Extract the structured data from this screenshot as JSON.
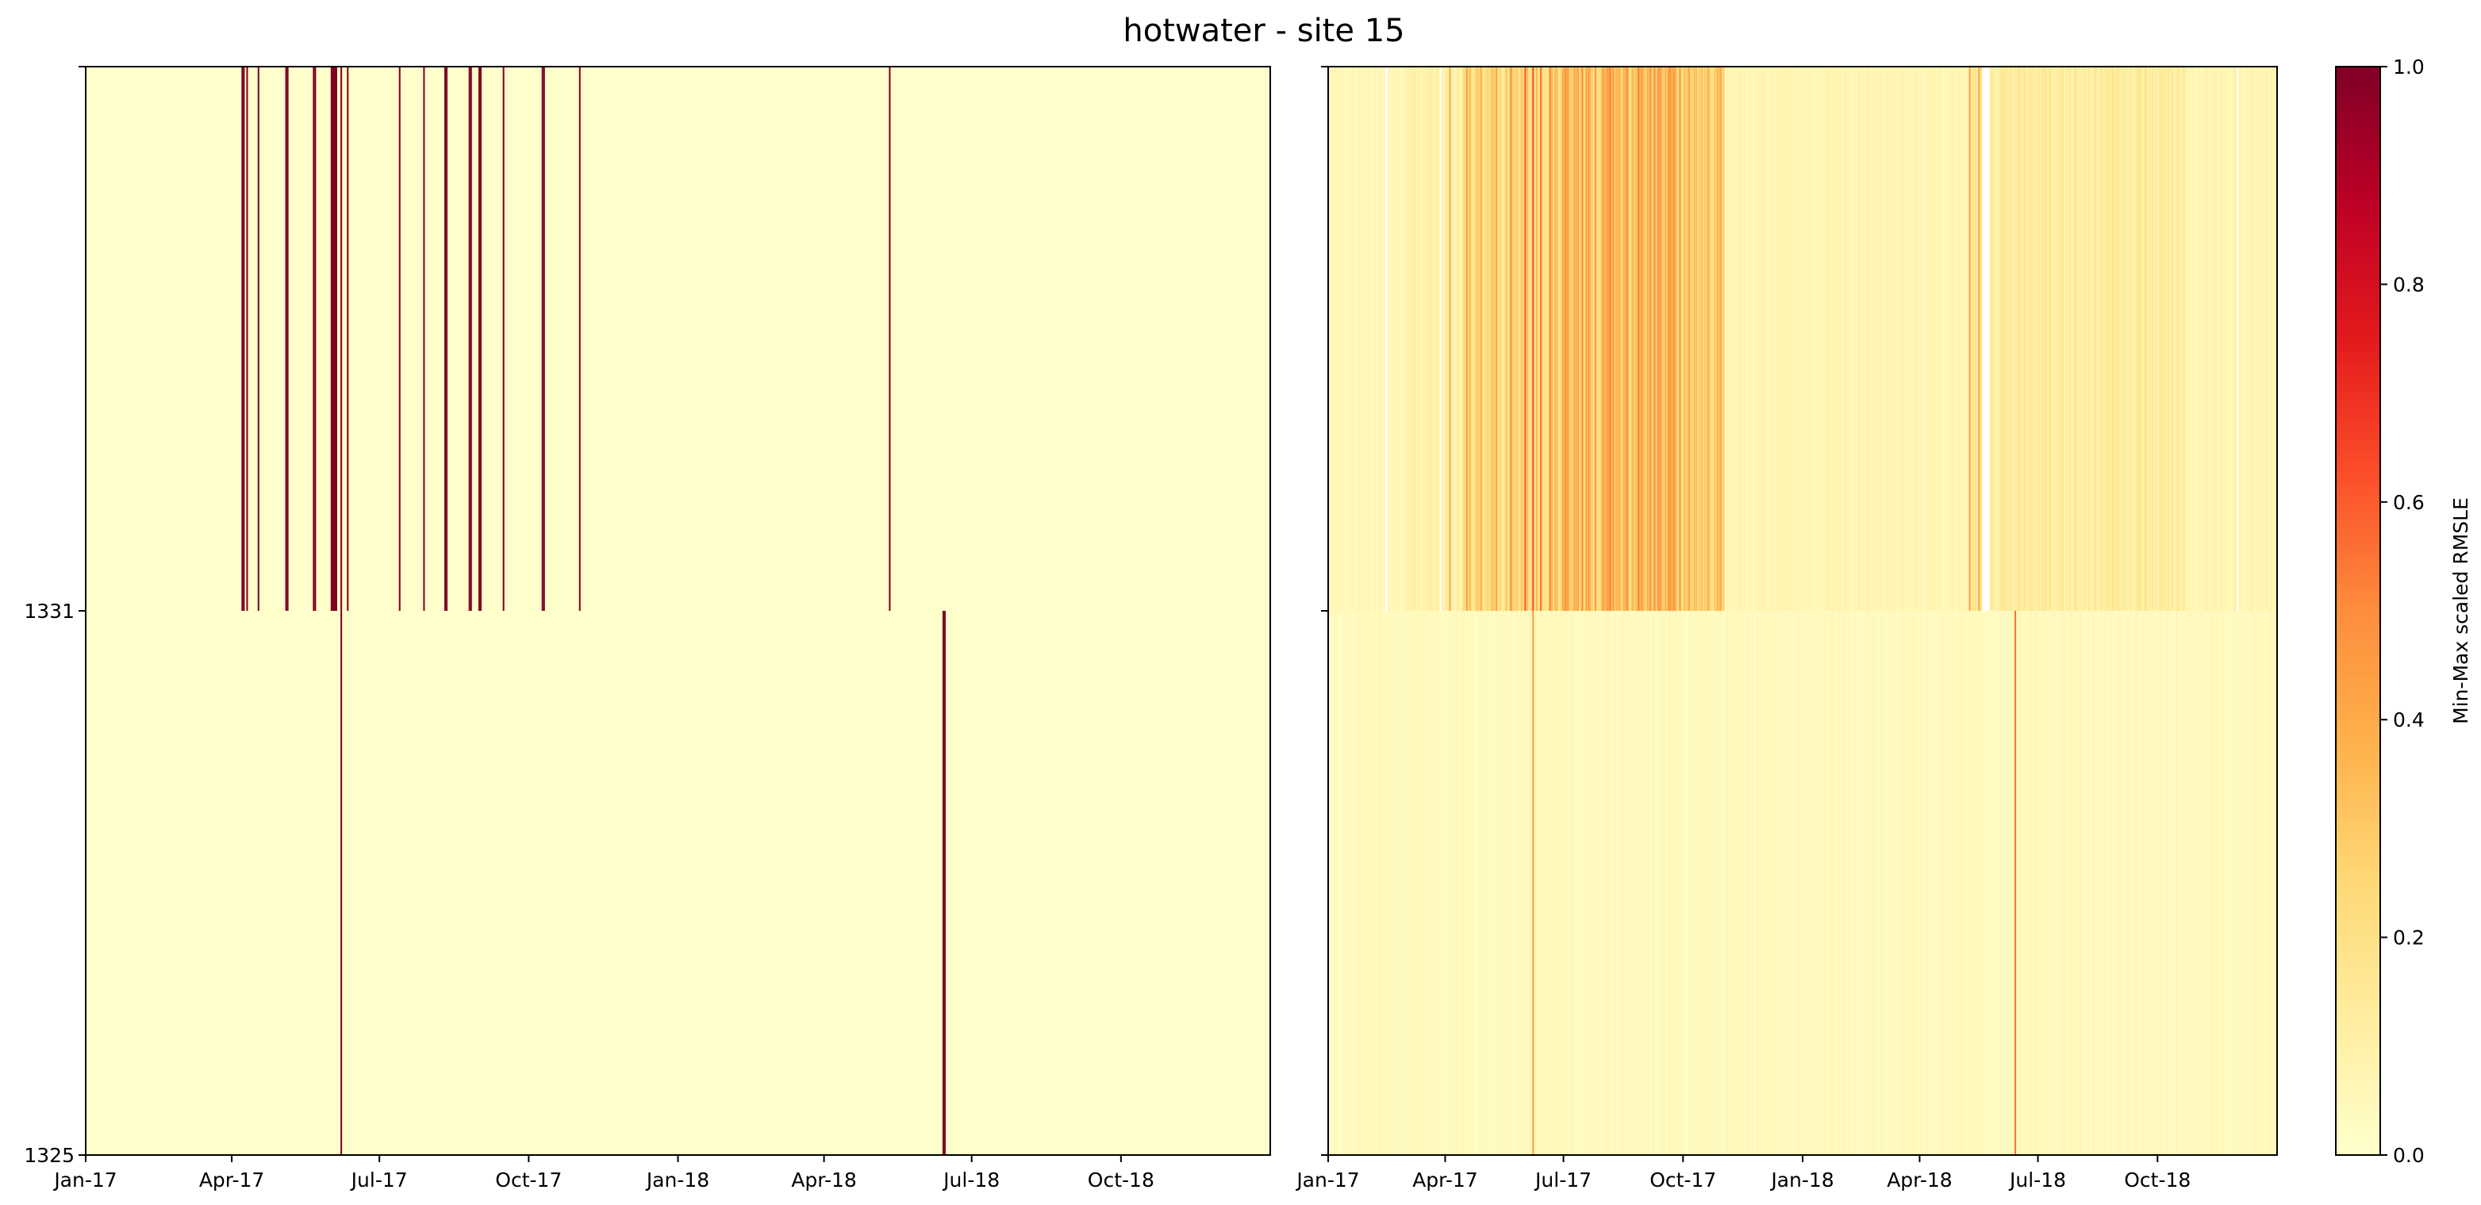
{
  "chart_data": {
    "title": "hotwater - site 15",
    "type": "heatmap",
    "x_range": [
      "2017-01-01",
      "2018-12-31"
    ],
    "x_ticks": [
      {
        "date": "2017-01-01",
        "label": "Jan-17"
      },
      {
        "date": "2017-04-01",
        "label": "Apr-17"
      },
      {
        "date": "2017-07-01",
        "label": "Jul-17"
      },
      {
        "date": "2017-10-01",
        "label": "Oct-17"
      },
      {
        "date": "2018-01-01",
        "label": "Jan-18"
      },
      {
        "date": "2018-04-01",
        "label": "Apr-18"
      },
      {
        "date": "2018-07-01",
        "label": "Jul-18"
      },
      {
        "date": "2018-10-01",
        "label": "Oct-18"
      }
    ],
    "y_tick_labels": [
      "1331",
      "1325"
    ],
    "rows": [
      "1331",
      "1325"
    ],
    "panels": [
      {
        "rows": [
          {
            "building": "1331",
            "base_value": 0.0,
            "anomalies": [
              {
                "date": "2017-04-07",
                "days": 1,
                "value": 1.0
              },
              {
                "date": "2017-04-08",
                "days": 1,
                "value": 1.0
              },
              {
                "date": "2017-04-10",
                "days": 1,
                "value": 1.0
              },
              {
                "date": "2017-04-17",
                "days": 1,
                "value": 1.0
              },
              {
                "date": "2017-05-04",
                "days": 1,
                "value": 1.0
              },
              {
                "date": "2017-05-05",
                "days": 1,
                "value": 1.0
              },
              {
                "date": "2017-05-21",
                "days": 1,
                "value": 1.0
              },
              {
                "date": "2017-05-22",
                "days": 1,
                "value": 1.0
              },
              {
                "date": "2017-06-01",
                "days": 4,
                "value": 1.0
              },
              {
                "date": "2017-06-07",
                "days": 1,
                "value": 1.0
              },
              {
                "date": "2017-06-11",
                "days": 1,
                "value": 1.0
              },
              {
                "date": "2017-07-13",
                "days": 1,
                "value": 1.0
              },
              {
                "date": "2017-07-28",
                "days": 1,
                "value": 1.0
              },
              {
                "date": "2017-08-10",
                "days": 1,
                "value": 1.0
              },
              {
                "date": "2017-08-11",
                "days": 1,
                "value": 1.0
              },
              {
                "date": "2017-08-25",
                "days": 1,
                "value": 1.0
              },
              {
                "date": "2017-08-26",
                "days": 1,
                "value": 1.0
              },
              {
                "date": "2017-08-31",
                "days": 1,
                "value": 1.0
              },
              {
                "date": "2017-09-01",
                "days": 1,
                "value": 1.0
              },
              {
                "date": "2017-09-15",
                "days": 1,
                "value": 1.0
              },
              {
                "date": "2017-10-09",
                "days": 1,
                "value": 1.0
              },
              {
                "date": "2017-10-10",
                "days": 1,
                "value": 1.0
              },
              {
                "date": "2017-11-01",
                "days": 1,
                "value": 1.0
              },
              {
                "date": "2018-05-11",
                "days": 1,
                "value": 1.0
              }
            ]
          },
          {
            "building": "1325",
            "base_value": 0.0,
            "anomalies": [
              {
                "date": "2017-06-07",
                "days": 1,
                "value": 1.0
              },
              {
                "date": "2018-06-13",
                "days": 2,
                "value": 1.0
              }
            ]
          }
        ]
      },
      {
        "rows": [
          {
            "building": "1331",
            "base_value": 0.04,
            "missing": [
              {
                "date": "2017-02-14",
                "days": 2
              },
              {
                "date": "2017-03-28",
                "days": 1
              },
              {
                "date": "2018-05-19",
                "days": 6
              },
              {
                "date": "2018-12-01",
                "days": 1
              }
            ],
            "segments": [
              {
                "date": "2017-01-01",
                "days": 59,
                "value": 0.06
              },
              {
                "date": "2017-03-01",
                "days": 45,
                "value": 0.1
              },
              {
                "date": "2017-04-15",
                "days": 45,
                "value": 0.24
              },
              {
                "date": "2017-05-30",
                "days": 35,
                "value": 0.28
              },
              {
                "date": "2017-07-04",
                "days": 88,
                "value": 0.34
              },
              {
                "date": "2017-09-30",
                "days": 33,
                "value": 0.28
              },
              {
                "date": "2017-11-02",
                "days": 190,
                "value": 0.07
              },
              {
                "date": "2018-05-11",
                "days": 8,
                "value": 0.18
              },
              {
                "date": "2018-05-25",
                "days": 150,
                "value": 0.13
              },
              {
                "date": "2018-10-22",
                "days": 70,
                "value": 0.07
              }
            ],
            "highlights": [
              {
                "date": "2017-04-04",
                "days": 1,
                "value": 0.42
              },
              {
                "date": "2017-04-17",
                "days": 1,
                "value": 0.45
              },
              {
                "date": "2017-04-28",
                "days": 1,
                "value": 0.4
              },
              {
                "date": "2017-05-10",
                "days": 1,
                "value": 0.44
              },
              {
                "date": "2017-05-21",
                "days": 1,
                "value": 0.5
              },
              {
                "date": "2017-06-01",
                "days": 1,
                "value": 0.62
              },
              {
                "date": "2017-06-07",
                "days": 1,
                "value": 0.62
              },
              {
                "date": "2017-06-13",
                "days": 1,
                "value": 0.55
              },
              {
                "date": "2017-06-20",
                "days": 1,
                "value": 0.52
              },
              {
                "date": "2017-07-02",
                "days": 1,
                "value": 0.48
              },
              {
                "date": "2017-07-15",
                "days": 1,
                "value": 0.5
              },
              {
                "date": "2017-07-25",
                "days": 1,
                "value": 0.47
              },
              {
                "date": "2017-08-05",
                "days": 1,
                "value": 0.5
              },
              {
                "date": "2017-08-18",
                "days": 1,
                "value": 0.46
              },
              {
                "date": "2017-08-27",
                "days": 1,
                "value": 0.52
              },
              {
                "date": "2017-09-08",
                "days": 1,
                "value": 0.44
              },
              {
                "date": "2017-09-20",
                "days": 1,
                "value": 0.48
              },
              {
                "date": "2017-10-05",
                "days": 1,
                "value": 0.42
              },
              {
                "date": "2017-10-20",
                "days": 1,
                "value": 0.36
              },
              {
                "date": "2018-05-09",
                "days": 1,
                "value": 0.45
              },
              {
                "date": "2018-05-16",
                "days": 1,
                "value": 0.4
              }
            ]
          },
          {
            "building": "1325",
            "base_value": 0.03,
            "segments": [
              {
                "date": "2017-01-01",
                "days": 729,
                "value": 0.04
              }
            ],
            "highlights": [
              {
                "date": "2017-06-07",
                "days": 1,
                "value": 0.45
              },
              {
                "date": "2018-06-13",
                "days": 1,
                "value": 0.55
              }
            ]
          }
        ]
      }
    ],
    "colorbar": {
      "label": "Min-Max scaled RMSLE",
      "colormap": "YlOrRd",
      "range": [
        0.0,
        1.0
      ],
      "ticks": [
        {
          "value": 0.0,
          "label": "0.0"
        },
        {
          "value": 0.2,
          "label": "0.2"
        },
        {
          "value": 0.4,
          "label": "0.4"
        },
        {
          "value": 0.6,
          "label": "0.6"
        },
        {
          "value": 0.8,
          "label": "0.8"
        },
        {
          "value": 1.0,
          "label": "1.0"
        }
      ],
      "stops": [
        "#ffffcc",
        "#ffeda0",
        "#fed976",
        "#feb24c",
        "#fd8d3c",
        "#fc4e2a",
        "#e31a1c",
        "#bd0026",
        "#800026"
      ]
    }
  }
}
